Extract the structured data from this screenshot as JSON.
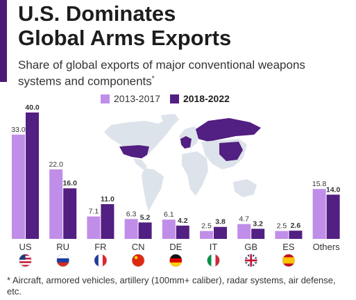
{
  "title": "U.S. Dominates Global Arms Exports",
  "subtitle": "Share of global exports of major conventional weapons systems and components",
  "subtitle_mark": "*",
  "footnote": "* Aircraft, armored vehicles, artillery (100mm+ caliber), radar systems, air defense, etc.",
  "colors": {
    "light": "#c08ee8",
    "dark": "#521f82",
    "map_base": "#dde3ea",
    "map_highlight": "#521f82",
    "accent": "#4b1a72"
  },
  "chart_data": {
    "type": "bar",
    "categories": [
      "US",
      "RU",
      "FR",
      "CN",
      "DE",
      "IT",
      "GB",
      "ES",
      "Others"
    ],
    "flags": [
      "us-flag-icon",
      "ru-flag-icon",
      "fr-flag-icon",
      "cn-flag-icon",
      "de-flag-icon",
      "it-flag-icon",
      "gb-flag-icon",
      "es-flag-icon",
      ""
    ],
    "series": [
      {
        "name": "2013-2017",
        "values": [
          33.0,
          22.0,
          7.1,
          6.3,
          6.1,
          2.5,
          4.7,
          2.5,
          15.8
        ]
      },
      {
        "name": "2018-2022",
        "values": [
          40.0,
          16.0,
          11.0,
          5.2,
          4.2,
          3.8,
          3.2,
          2.6,
          14.0
        ]
      }
    ],
    "ylim": [
      0,
      40
    ],
    "legend_position": "top",
    "grid": false
  }
}
